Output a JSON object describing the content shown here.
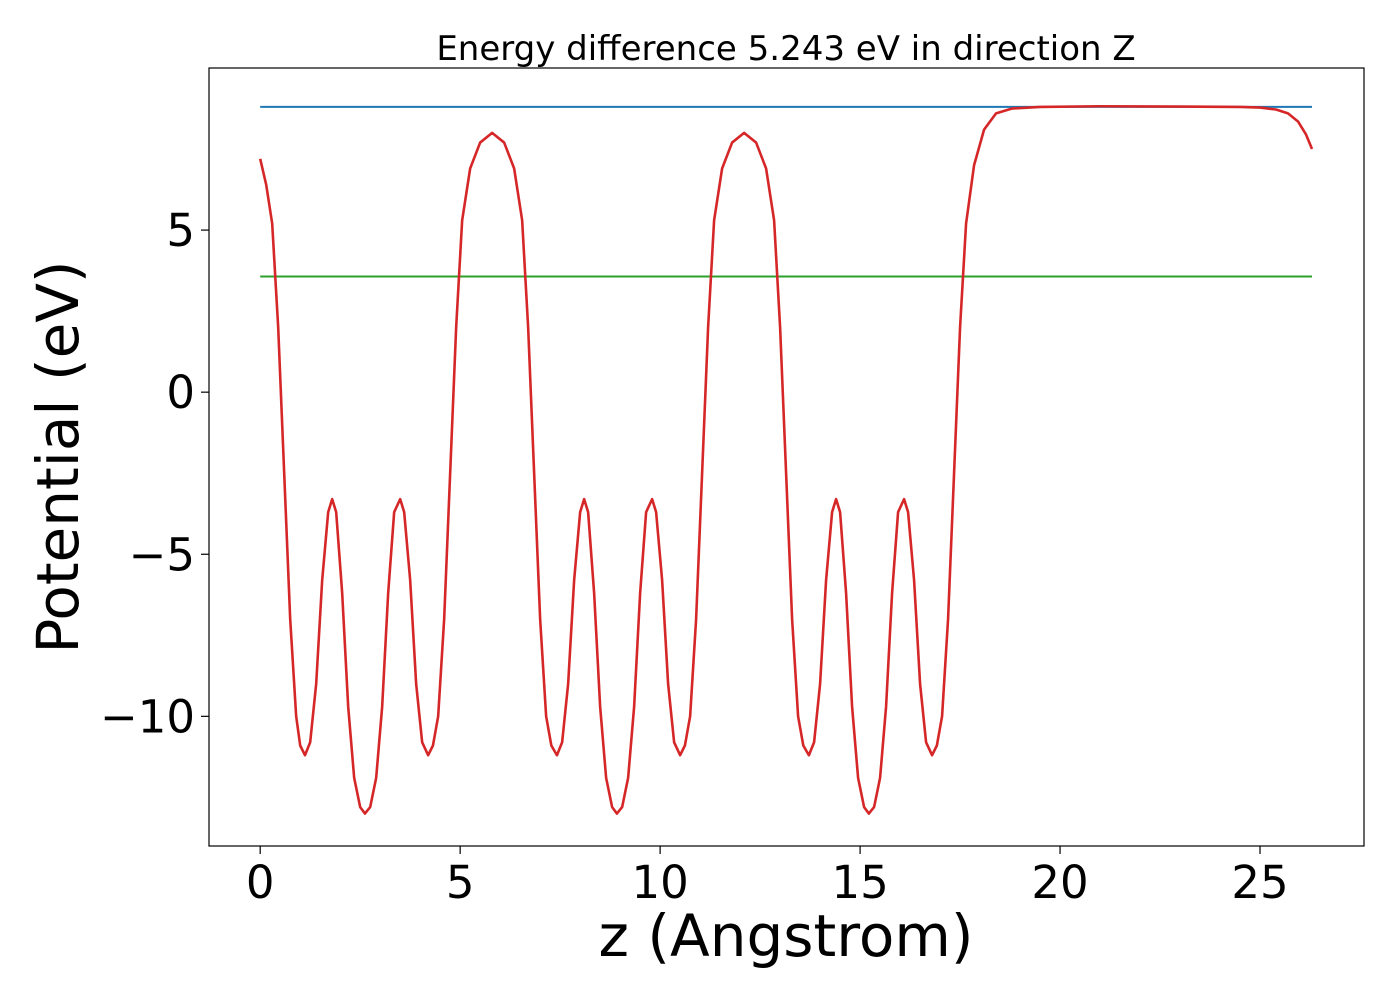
{
  "chart_data": {
    "type": "line",
    "title": "Energy difference 5.243 eV in direction Z",
    "xlabel": "z (Angstrom)",
    "ylabel": "Potential (eV)",
    "xlim": [
      -1.28,
      27.6
    ],
    "ylim": [
      -14.0,
      10.0
    ],
    "x_ticks": [
      0,
      5,
      10,
      15,
      20,
      25
    ],
    "x_tick_labels": [
      "0",
      "5",
      "10",
      "15",
      "20",
      "25"
    ],
    "y_ticks": [
      -10,
      -5,
      0,
      5
    ],
    "y_tick_labels": [
      "−10",
      "−5",
      "0",
      "5"
    ],
    "grid": false,
    "legend": "none",
    "series": [
      {
        "color": "#d62728",
        "style": "line",
        "points": [
          [
            0.0,
            7.2
          ],
          [
            0.15,
            6.4
          ],
          [
            0.3,
            5.2
          ],
          [
            0.45,
            2.0
          ],
          [
            0.6,
            -2.5
          ],
          [
            0.75,
            -7.0
          ],
          [
            0.9,
            -10.0
          ],
          [
            1.0,
            -10.9
          ],
          [
            1.12,
            -11.2
          ],
          [
            1.25,
            -10.8
          ],
          [
            1.4,
            -9.0
          ],
          [
            1.55,
            -5.8
          ],
          [
            1.7,
            -3.7
          ],
          [
            1.8,
            -3.3
          ],
          [
            1.9,
            -3.7
          ],
          [
            2.05,
            -6.2
          ],
          [
            2.2,
            -9.7
          ],
          [
            2.35,
            -11.9
          ],
          [
            2.5,
            -12.8
          ],
          [
            2.62,
            -13.0
          ],
          [
            2.75,
            -12.8
          ],
          [
            2.9,
            -11.9
          ],
          [
            3.05,
            -9.7
          ],
          [
            3.2,
            -6.2
          ],
          [
            3.35,
            -3.7
          ],
          [
            3.5,
            -3.3
          ],
          [
            3.6,
            -3.7
          ],
          [
            3.75,
            -5.8
          ],
          [
            3.9,
            -9.0
          ],
          [
            4.05,
            -10.8
          ],
          [
            4.2,
            -11.2
          ],
          [
            4.32,
            -10.9
          ],
          [
            4.45,
            -10.0
          ],
          [
            4.6,
            -7.0
          ],
          [
            4.75,
            -2.5
          ],
          [
            4.9,
            2.0
          ],
          [
            5.05,
            5.3
          ],
          [
            5.25,
            6.9
          ],
          [
            5.5,
            7.7
          ],
          [
            5.8,
            8.0
          ],
          [
            6.1,
            7.7
          ],
          [
            6.35,
            6.9
          ],
          [
            6.55,
            5.3
          ],
          [
            6.7,
            2.0
          ],
          [
            6.85,
            -2.5
          ],
          [
            7.0,
            -7.0
          ],
          [
            7.15,
            -10.0
          ],
          [
            7.28,
            -10.9
          ],
          [
            7.42,
            -11.2
          ],
          [
            7.55,
            -10.8
          ],
          [
            7.7,
            -9.0
          ],
          [
            7.85,
            -5.8
          ],
          [
            8.0,
            -3.7
          ],
          [
            8.1,
            -3.3
          ],
          [
            8.2,
            -3.7
          ],
          [
            8.35,
            -6.2
          ],
          [
            8.5,
            -9.7
          ],
          [
            8.65,
            -11.9
          ],
          [
            8.8,
            -12.8
          ],
          [
            8.92,
            -13.0
          ],
          [
            9.05,
            -12.8
          ],
          [
            9.2,
            -11.9
          ],
          [
            9.35,
            -9.7
          ],
          [
            9.5,
            -6.2
          ],
          [
            9.65,
            -3.7
          ],
          [
            9.8,
            -3.3
          ],
          [
            9.9,
            -3.7
          ],
          [
            10.05,
            -5.8
          ],
          [
            10.2,
            -9.0
          ],
          [
            10.35,
            -10.8
          ],
          [
            10.5,
            -11.2
          ],
          [
            10.62,
            -10.9
          ],
          [
            10.75,
            -10.0
          ],
          [
            10.9,
            -7.0
          ],
          [
            11.05,
            -2.5
          ],
          [
            11.2,
            2.0
          ],
          [
            11.35,
            5.3
          ],
          [
            11.55,
            6.9
          ],
          [
            11.8,
            7.7
          ],
          [
            12.1,
            8.0
          ],
          [
            12.4,
            7.7
          ],
          [
            12.65,
            6.9
          ],
          [
            12.85,
            5.3
          ],
          [
            13.0,
            2.0
          ],
          [
            13.15,
            -2.5
          ],
          [
            13.3,
            -7.0
          ],
          [
            13.45,
            -10.0
          ],
          [
            13.58,
            -10.9
          ],
          [
            13.72,
            -11.2
          ],
          [
            13.85,
            -10.8
          ],
          [
            14.0,
            -9.0
          ],
          [
            14.15,
            -5.8
          ],
          [
            14.3,
            -3.7
          ],
          [
            14.4,
            -3.3
          ],
          [
            14.5,
            -3.7
          ],
          [
            14.65,
            -6.2
          ],
          [
            14.8,
            -9.7
          ],
          [
            14.95,
            -11.9
          ],
          [
            15.1,
            -12.8
          ],
          [
            15.22,
            -13.0
          ],
          [
            15.35,
            -12.8
          ],
          [
            15.5,
            -11.9
          ],
          [
            15.65,
            -9.7
          ],
          [
            15.8,
            -6.2
          ],
          [
            15.95,
            -3.7
          ],
          [
            16.1,
            -3.3
          ],
          [
            16.2,
            -3.7
          ],
          [
            16.35,
            -5.8
          ],
          [
            16.5,
            -9.0
          ],
          [
            16.65,
            -10.8
          ],
          [
            16.8,
            -11.2
          ],
          [
            16.92,
            -10.9
          ],
          [
            17.05,
            -10.0
          ],
          [
            17.2,
            -7.0
          ],
          [
            17.35,
            -2.5
          ],
          [
            17.5,
            2.0
          ],
          [
            17.65,
            5.2
          ],
          [
            17.85,
            7.0
          ],
          [
            18.1,
            8.1
          ],
          [
            18.4,
            8.6
          ],
          [
            18.8,
            8.75
          ],
          [
            19.5,
            8.8
          ],
          [
            21.0,
            8.82
          ],
          [
            23.0,
            8.81
          ],
          [
            24.5,
            8.8
          ],
          [
            25.0,
            8.78
          ],
          [
            25.4,
            8.72
          ],
          [
            25.7,
            8.6
          ],
          [
            25.95,
            8.35
          ],
          [
            26.15,
            7.95
          ],
          [
            26.3,
            7.5
          ]
        ]
      },
      {
        "color": "#1f77b4",
        "style": "hline",
        "points": [
          [
            0.0,
            8.8
          ],
          [
            26.3,
            8.8
          ]
        ]
      },
      {
        "color": "#2ca02c",
        "style": "hline",
        "points": [
          [
            0.0,
            3.57
          ],
          [
            26.3,
            3.57
          ]
        ]
      }
    ]
  }
}
